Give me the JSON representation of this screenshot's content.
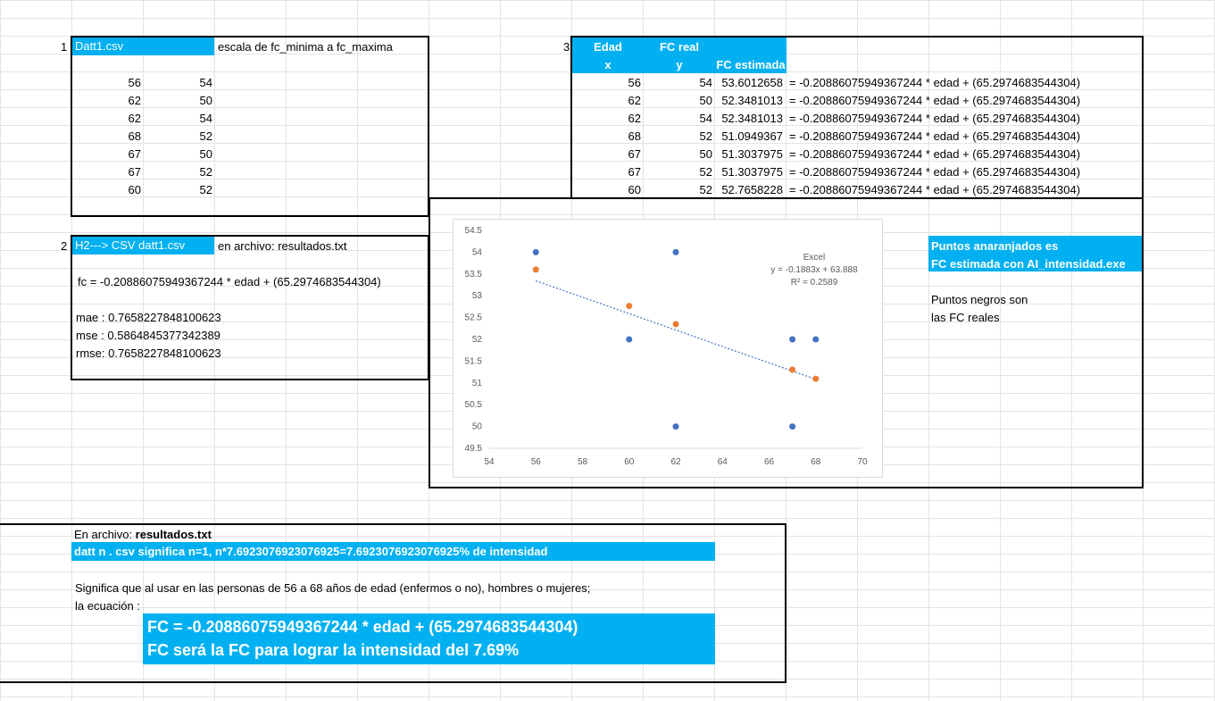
{
  "section1": {
    "num": "1",
    "file": "Datt1.csv",
    "note": "escala de fc_minima a fc_maxima",
    "rows": [
      [
        "56",
        "54"
      ],
      [
        "62",
        "50"
      ],
      [
        "62",
        "54"
      ],
      [
        "68",
        "52"
      ],
      [
        "67",
        "50"
      ],
      [
        "67",
        "52"
      ],
      [
        "60",
        "52"
      ]
    ]
  },
  "section2": {
    "num": "2",
    "label": "H2---> CSV datt1.csv",
    "note": "en archivo: resultados.txt",
    "equation": "fc = -0.20886075949367244 * edad + (65.2974683544304)",
    "mae": "mae : 0.7658227848100623",
    "mse": "mse : 0.5864845377342389",
    "rmse": "rmse: 0.7658227848100623"
  },
  "section3": {
    "num": "3",
    "headers": {
      "edad": "Edad",
      "x": "x",
      "fcreal": "FC real",
      "y": "y",
      "fcest": "FC estimada"
    },
    "rows": [
      [
        "56",
        "54",
        "53.6012658",
        "= -0.20886075949367244 * edad + (65.2974683544304)"
      ],
      [
        "62",
        "50",
        "52.3481013",
        "= -0.20886075949367244 * edad + (65.2974683544304)"
      ],
      [
        "62",
        "54",
        "52.3481013",
        "= -0.20886075949367244 * edad + (65.2974683544304)"
      ],
      [
        "68",
        "52",
        "51.0949367",
        "= -0.20886075949367244 * edad + (65.2974683544304)"
      ],
      [
        "67",
        "50",
        "51.3037975",
        "= -0.20886075949367244 * edad + (65.2974683544304)"
      ],
      [
        "67",
        "52",
        "51.3037975",
        "= -0.20886075949367244 * edad + (65.2974683544304)"
      ],
      [
        "60",
        "52",
        "52.7658228",
        "= -0.20886075949367244 * edad + (65.2974683544304)"
      ]
    ]
  },
  "legend_notes": {
    "orange_line1": "Puntos anaranjados es",
    "orange_line2": "FC estimada con AI_intensidad.exe",
    "black_line1": "Puntos negros son",
    "black_line2": "las FC reales"
  },
  "bottom": {
    "line1_prefix": "En archivo: ",
    "line1_file": "resultados.txt",
    "banner": "datt n . csv significa n=1, n*7.6923076923076925=7.6923076923076925% de intensidad",
    "desc1": "Significa que al usar en las personas de 56 a 68 años de edad (enfermos o no), hombres o mujeres;",
    "desc2": "la ecuación :",
    "formula": "FC = -0.20886075949367244 * edad + (65.2974683544304)",
    "formula2": "FC será la FC para lograr la intensidad del 7.69%"
  },
  "chart_data": {
    "type": "scatter",
    "title": "",
    "xlim": [
      54,
      70
    ],
    "ylim": [
      49.5,
      54.5
    ],
    "xticks": [
      "54",
      "56",
      "58",
      "60",
      "62",
      "64",
      "66",
      "68",
      "70"
    ],
    "yticks": [
      "49.5",
      "50",
      "50.5",
      "51",
      "51.5",
      "52",
      "52.5",
      "53",
      "53.5",
      "54",
      "54.5"
    ],
    "grid": false,
    "colors": {
      "real": "#4472c4",
      "estimated": "#ed7d31",
      "trend": "#4472c4"
    },
    "series": [
      {
        "points": [
          [
            56,
            54
          ],
          [
            62,
            50
          ],
          [
            62,
            54
          ],
          [
            68,
            52
          ],
          [
            67,
            50
          ],
          [
            67,
            52
          ],
          [
            60,
            52
          ]
        ]
      },
      {
        "points": [
          [
            56,
            53.6012658
          ],
          [
            62,
            52.3481013
          ],
          [
            68,
            51.0949367
          ],
          [
            67,
            51.3037975
          ],
          [
            60,
            52.7658228
          ]
        ]
      }
    ],
    "trendline": {
      "slope": -0.1883,
      "intercept": 63.888,
      "x_range": [
        56,
        68
      ]
    },
    "annotation": {
      "label": "Excel",
      "equation": "y = -0.1883x + 63.888",
      "r2": "R² = 0.2589"
    }
  }
}
